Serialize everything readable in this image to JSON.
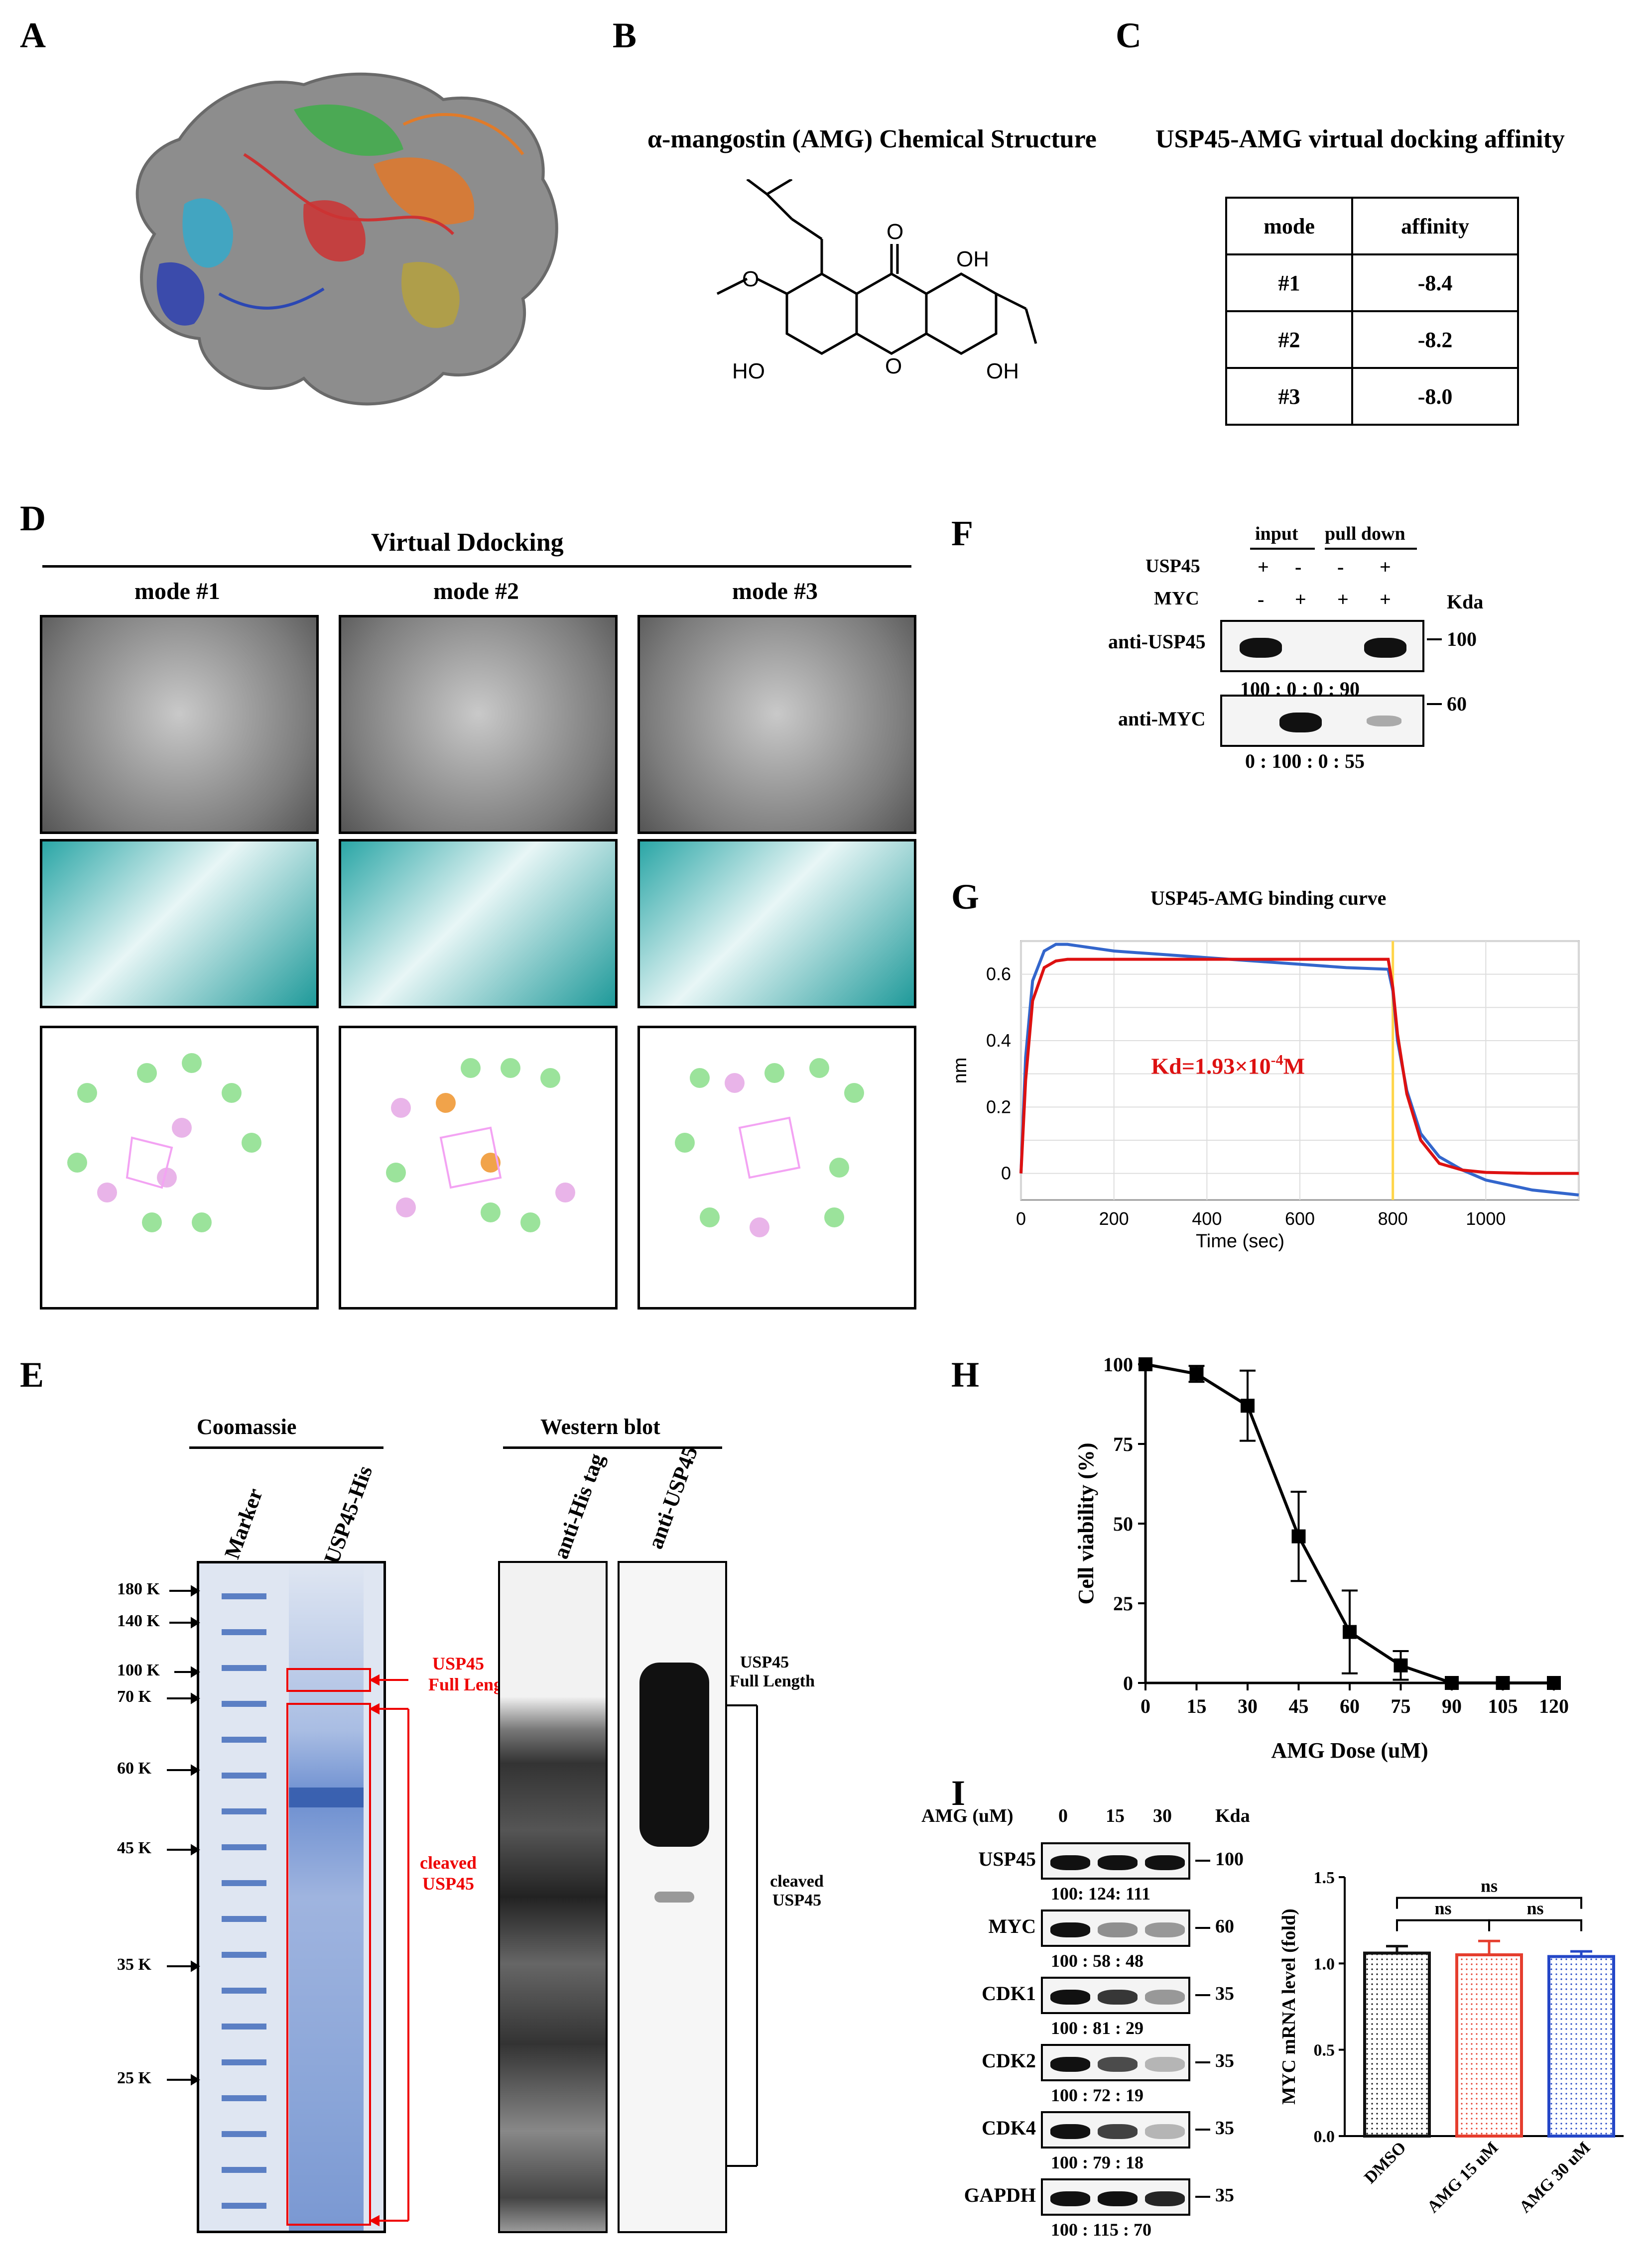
{
  "panels": {
    "A": "A",
    "B": "B",
    "C": "C",
    "D": "D",
    "E": "E",
    "F": "F",
    "G": "G",
    "H": "H",
    "I": "I"
  },
  "b": {
    "title": "α-mangostin (AMG) Chemical Structure",
    "atoms": {
      "o_carbonyl": "O",
      "oh1": "OH",
      "o_methoxy": "O",
      "ho_left": "HO",
      "o_ring": "O",
      "oh_right": "OH"
    }
  },
  "c": {
    "title": "USP45-AMG virtual docking affinity",
    "headers": [
      "mode",
      "affinity"
    ],
    "rows": [
      [
        "#1",
        "-8.4"
      ],
      [
        "#2",
        "-8.2"
      ],
      [
        "#3",
        "-8.0"
      ]
    ]
  },
  "d": {
    "title": "Virtual Ddocking",
    "modes": [
      "mode #1",
      "mode #2",
      "mode #3"
    ]
  },
  "e": {
    "coomassie": "Coomassie",
    "western": "Western blot",
    "lanes": [
      "Marker",
      "USP45-His",
      "anti-His tag",
      "anti-USP45"
    ],
    "markers": [
      "180 K",
      "140 K",
      "100 K",
      "70 K",
      "60 K",
      "45 K",
      "35 K",
      "25 K"
    ],
    "full_length": [
      "USP45",
      "Full Length"
    ],
    "cleaved": [
      "cleaved",
      "USP45"
    ]
  },
  "f": {
    "groups": [
      "input",
      "pull down"
    ],
    "rows": [
      {
        "name": "USP45",
        "signs": [
          "+",
          "-",
          "-",
          "+"
        ]
      },
      {
        "name": "MYC",
        "signs": [
          "-",
          "+",
          "+",
          "+"
        ]
      }
    ],
    "kda": "Kda",
    "blots": [
      {
        "name": "anti-USP45",
        "mw": "100",
        "quant": "100 : 0 : 0 : 90"
      },
      {
        "name": "anti-MYC",
        "mw": "60",
        "quant": "0 : 100 : 0 : 55"
      }
    ]
  },
  "g": {
    "title": "USP45-AMG binding curve",
    "xlabel": "Time (sec)",
    "ylabel": "nm",
    "kd": "Kd=1.93×10",
    "kd_exp": "-4",
    "kd_unit": "M"
  },
  "h": {
    "xlabel": "AMG Dose (uM)",
    "ylabel": "Cell viability (%)"
  },
  "i": {
    "dose_label": "AMG (uM)",
    "doses": [
      "0",
      "15",
      "30"
    ],
    "kda": "Kda",
    "blots": [
      {
        "name": "USP45",
        "mw": "100",
        "quant": "100: 124: 111"
      },
      {
        "name": "MYC",
        "mw": "60",
        "quant": "100 : 58 : 48"
      },
      {
        "name": "CDK1",
        "mw": "35",
        "quant": "100 : 81 : 29"
      },
      {
        "name": "CDK2",
        "mw": "35",
        "quant": "100 : 72 : 19"
      },
      {
        "name": "CDK4",
        "mw": "35",
        "quant": "100 : 79 : 18"
      },
      {
        "name": "GAPDH",
        "mw": "35",
        "quant": "100 : 115 : 70"
      }
    ],
    "ns": [
      "ns",
      "ns",
      "ns"
    ]
  },
  "chart_data": [
    {
      "type": "line",
      "panel": "G",
      "title": "USP45-AMG binding curve",
      "xlabel": "Time (sec)",
      "ylabel": "nm",
      "xlim": [
        0,
        1200
      ],
      "ylim": [
        -0.08,
        0.7
      ],
      "grid": true,
      "xticks": [
        0,
        200,
        400,
        600,
        800,
        1000
      ],
      "yticks": [
        0,
        0.2,
        0.4,
        0.6
      ],
      "series": [
        {
          "color": "#3366cc",
          "x": [
            0,
            10,
            25,
            50,
            75,
            100,
            150,
            200,
            300,
            400,
            500,
            600,
            700,
            790,
            800,
            810,
            830,
            860,
            900,
            950,
            1000,
            1100,
            1200
          ],
          "y": [
            0,
            0.35,
            0.58,
            0.67,
            0.69,
            0.69,
            0.68,
            0.67,
            0.66,
            0.65,
            0.64,
            0.63,
            0.62,
            0.615,
            0.55,
            0.4,
            0.25,
            0.12,
            0.05,
            0.01,
            -0.02,
            -0.05,
            -0.065
          ]
        },
        {
          "color": "#dd1111",
          "x": [
            0,
            10,
            25,
            50,
            75,
            100,
            200,
            400,
            600,
            790,
            800,
            810,
            830,
            860,
            900,
            950,
            1000,
            1100,
            1200
          ],
          "y": [
            0,
            0.28,
            0.52,
            0.62,
            0.64,
            0.645,
            0.645,
            0.645,
            0.645,
            0.645,
            0.56,
            0.42,
            0.24,
            0.1,
            0.03,
            0.01,
            0.003,
            0.0,
            0.0
          ]
        }
      ],
      "vline": {
        "x": 800,
        "color": "#ffd54a"
      }
    },
    {
      "type": "line",
      "panel": "H",
      "xlabel": "AMG Dose (uM)",
      "ylabel": "Cell viability (%)",
      "xlim": [
        0,
        120
      ],
      "ylim": [
        0,
        100
      ],
      "xticks": [
        0,
        15,
        30,
        45,
        60,
        75,
        90,
        105,
        120
      ],
      "yticks": [
        0,
        25,
        50,
        75,
        100
      ],
      "x": [
        0,
        15,
        30,
        45,
        60,
        75,
        90,
        105,
        120
      ],
      "values": [
        100,
        97,
        87,
        46,
        16,
        5.5,
        0,
        0,
        0
      ],
      "errors": [
        0,
        2.5,
        11,
        14,
        13,
        4.5,
        0,
        0,
        0
      ]
    },
    {
      "type": "bar",
      "panel": "I",
      "ylabel": "MYC mRNA level (fold)",
      "categories": [
        "DMSO",
        "AMG 15 uM",
        "AMG 30 uM"
      ],
      "values": [
        1.06,
        1.05,
        1.04
      ],
      "errors": [
        0.04,
        0.08,
        0.03
      ],
      "ylim": [
        0,
        1.5
      ],
      "yticks": [
        "0.0",
        "0.5",
        "1.0",
        "1.5"
      ],
      "colors": [
        "#111111",
        "#e53e2e",
        "#2447c7"
      ]
    }
  ]
}
